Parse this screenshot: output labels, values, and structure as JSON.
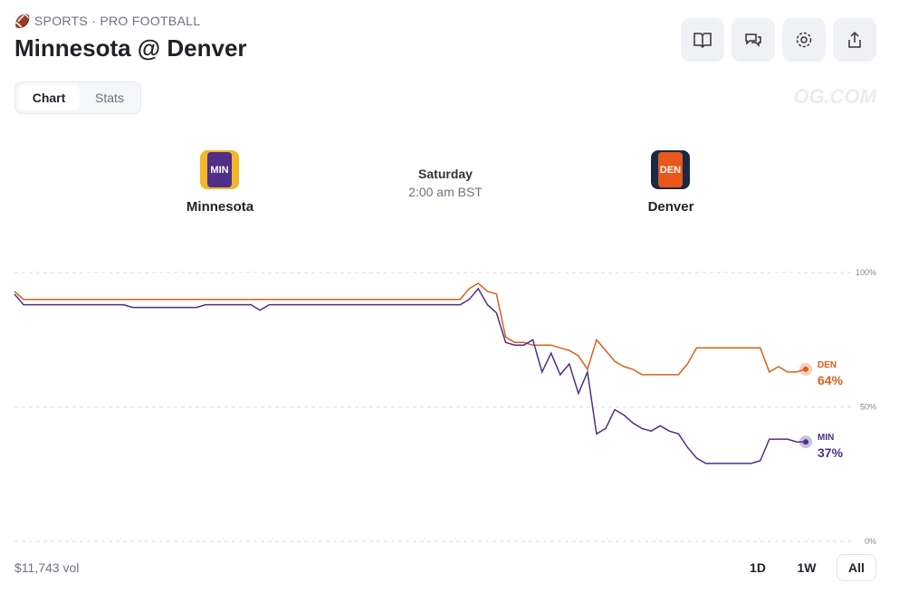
{
  "header": {
    "breadcrumb": "SPORTS · PRO FOOTBALL",
    "title": "Minnesota @ Denver"
  },
  "tabs": [
    "Chart",
    "Stats"
  ],
  "brand": "OG.COM",
  "matchup": {
    "home": {
      "name": "Minnesota",
      "abbr": "MIN"
    },
    "away": {
      "name": "Denver",
      "abbr": "DEN"
    },
    "day": "Saturday",
    "time": "2:00 am BST"
  },
  "chart_data": {
    "type": "line",
    "ylim": [
      0,
      100
    ],
    "yticks": [
      {
        "value": 0,
        "label": "0%"
      },
      {
        "value": 50,
        "label": "50%"
      },
      {
        "value": 100,
        "label": "100%"
      }
    ],
    "grid": true,
    "series": [
      {
        "name": "DEN",
        "color": "#d9601a",
        "end_label": "64%",
        "values": [
          93,
          90,
          90,
          90,
          90,
          90,
          90,
          90,
          90,
          90,
          90,
          90,
          90,
          90,
          90,
          90,
          90,
          90,
          90,
          90,
          90,
          90,
          90,
          90,
          90,
          90,
          90,
          90,
          90,
          90,
          90,
          90,
          90,
          90,
          90,
          90,
          90,
          90,
          90,
          90,
          90,
          90,
          90,
          90,
          90,
          90,
          90,
          90,
          90,
          90,
          94,
          96,
          93,
          92,
          76,
          74,
          74,
          73,
          73,
          73,
          72,
          71,
          69,
          64,
          75,
          71,
          67,
          65,
          64,
          62,
          62,
          62,
          62,
          62,
          66,
          72,
          72,
          72,
          72,
          72,
          72,
          72,
          72,
          63,
          65,
          63,
          63,
          64
        ]
      },
      {
        "name": "MIN",
        "color": "#4f2f86",
        "end_label": "37%",
        "values": [
          92,
          88,
          88,
          88,
          88,
          88,
          88,
          88,
          88,
          88,
          88,
          88,
          88,
          87,
          87,
          87,
          87,
          87,
          87,
          87,
          87,
          88,
          88,
          88,
          88,
          88,
          88,
          86,
          88,
          88,
          88,
          88,
          88,
          88,
          88,
          88,
          88,
          88,
          88,
          88,
          88,
          88,
          88,
          88,
          88,
          88,
          88,
          88,
          88,
          88,
          90,
          94,
          88,
          85,
          74,
          73,
          73,
          75,
          63,
          70,
          62,
          66,
          55,
          63,
          40,
          42,
          49,
          47,
          44,
          42,
          41,
          43,
          41,
          40,
          35,
          31,
          29,
          29,
          29,
          29,
          29,
          29,
          30,
          38,
          38,
          38,
          37,
          37
        ]
      }
    ]
  },
  "footer": {
    "volume": "$11,743 vol",
    "ranges": [
      "1D",
      "1W",
      "All"
    ]
  }
}
